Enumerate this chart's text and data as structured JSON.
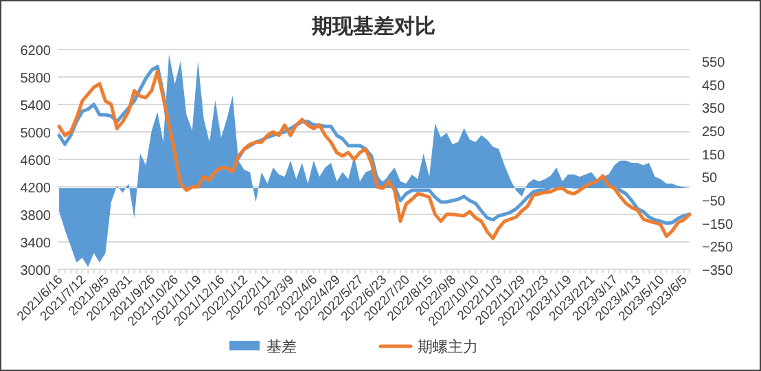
{
  "chart_data": {
    "type": "line",
    "title": "期现基差对比",
    "categories": [
      "2021/6/16",
      null,
      null,
      null,
      "2021/7/12",
      null,
      null,
      null,
      "2021/8/5",
      null,
      null,
      null,
      "2021/8/31",
      null,
      null,
      null,
      "2021/9/26",
      null,
      null,
      null,
      "2021/10/26",
      null,
      null,
      null,
      "2021/11/19",
      null,
      null,
      null,
      "2021/12/16",
      null,
      null,
      null,
      "2022/1/12",
      null,
      null,
      null,
      "2022/2/11",
      null,
      null,
      null,
      "2022/3/9",
      null,
      null,
      null,
      "2022/4/6",
      null,
      null,
      null,
      "2022/4/29",
      null,
      null,
      null,
      "2022/5/27",
      null,
      null,
      null,
      "2022/6/23",
      null,
      null,
      null,
      "2022/7/20",
      null,
      null,
      null,
      "2022/8/15",
      null,
      null,
      null,
      "2022/9/8",
      null,
      null,
      null,
      "2022/10/10",
      null,
      null,
      null,
      "2022/11/3",
      null,
      null,
      null,
      "2022/11/29",
      null,
      null,
      null,
      "2022/12/23",
      null,
      null,
      null,
      "2023/1/19",
      null,
      null,
      null,
      "2023/2/21",
      null,
      null,
      null,
      "2023/3/17",
      null,
      null,
      null,
      "2023/4/13",
      null,
      null,
      null,
      "2023/5/10",
      null,
      null,
      null,
      "2023/6/5",
      null
    ],
    "series": [
      {
        "name": "基差",
        "type": "area",
        "axis": "y2",
        "color": "#5b9bd5",
        "values": [
          -100,
          -180,
          -250,
          -320,
          -300,
          -340,
          -280,
          -320,
          -280,
          -60,
          10,
          -20,
          20,
          -130,
          150,
          100,
          250,
          330,
          200,
          580,
          450,
          550,
          320,
          250,
          550,
          300,
          200,
          380,
          220,
          300,
          400,
          120,
          80,
          70,
          -60,
          70,
          20,
          90,
          60,
          50,
          120,
          40,
          110,
          20,
          120,
          50,
          90,
          110,
          30,
          70,
          40,
          140,
          30,
          70,
          80,
          60,
          20,
          60,
          90,
          30,
          20,
          60,
          40,
          150,
          50,
          280,
          220,
          240,
          190,
          200,
          260,
          210,
          200,
          230,
          210,
          180,
          170,
          100,
          40,
          -10,
          -35,
          20,
          40,
          30,
          40,
          55,
          90,
          30,
          60,
          60,
          50,
          60,
          70,
          40,
          50,
          60,
          100,
          120,
          120,
          110,
          110,
          100,
          110,
          50,
          40,
          20,
          20,
          10,
          5,
          0
        ]
      },
      {
        "color": "#5b9bd5",
        "values": [
          4950,
          4820,
          4950,
          5150,
          5300,
          5330,
          5400,
          5250,
          5250,
          5230,
          5150,
          5250,
          5350,
          5450,
          5620,
          5780,
          5900,
          5950,
          5550,
          5000,
          4600,
          4300,
          4250,
          4250,
          4300,
          4350,
          4400,
          4450,
          4500,
          4500,
          4500,
          4620,
          4750,
          4800,
          4850,
          4880,
          4920,
          4950,
          4980,
          5000,
          5050,
          5100,
          5150,
          5150,
          5100,
          5100,
          5080,
          5080,
          4950,
          4900,
          4800,
          4800,
          4800,
          4750,
          4650,
          4300,
          4250,
          4320,
          4200,
          4000,
          4100,
          4150,
          4150,
          4150,
          4150,
          4050,
          3980,
          3980,
          4000,
          4020,
          4060,
          4000,
          3960,
          3850,
          3750,
          3720,
          3780,
          3800,
          3830,
          3880,
          3960,
          4050,
          4130,
          4150,
          4150,
          4200,
          4240,
          4240,
          4220,
          4200,
          4200,
          4220,
          4240,
          4280,
          4320,
          4250,
          4200,
          4150,
          4100,
          4000,
          3880,
          3840,
          3760,
          3720,
          3700,
          3670,
          3680,
          3740,
          3780,
          3800
        ]
      },
      {
        "name": "期螺主力",
        "color": "#ed7d31",
        "values": [
          5080,
          4950,
          5000,
          5200,
          5450,
          5550,
          5650,
          5700,
          5450,
          5400,
          5050,
          5150,
          5300,
          5600,
          5520,
          5500,
          5600,
          5880,
          5500,
          5100,
          4700,
          4250,
          4150,
          4200,
          4200,
          4350,
          4300,
          4420,
          4480,
          4480,
          4420,
          4650,
          4750,
          4820,
          4850,
          4850,
          4950,
          5000,
          4950,
          5100,
          4950,
          5100,
          5180,
          5100,
          5050,
          5100,
          4950,
          4850,
          4700,
          4650,
          4700,
          4600,
          4700,
          4750,
          4550,
          4200,
          4180,
          4280,
          4150,
          3700,
          3950,
          4020,
          4100,
          4080,
          4050,
          3800,
          3700,
          3800,
          3800,
          3790,
          3780,
          3840,
          3750,
          3700,
          3550,
          3450,
          3600,
          3700,
          3730,
          3760,
          3850,
          3920,
          4080,
          4100,
          4120,
          4130,
          4170,
          4180,
          4120,
          4100,
          4150,
          4210,
          4250,
          4280,
          4360,
          4220,
          4180,
          4060,
          3960,
          3900,
          3860,
          3730,
          3700,
          3680,
          3650,
          3480,
          3560,
          3680,
          3720,
          3800
        ]
      }
    ],
    "ylim": [
      3000,
      6200
    ],
    "yticks": [
      3000,
      3400,
      3800,
      4200,
      4600,
      5000,
      5400,
      5800,
      6200
    ],
    "y2lim": [
      -350,
      600
    ],
    "y2ticks": [
      -350,
      -250,
      -150,
      -50,
      50,
      150,
      250,
      350,
      450,
      550
    ],
    "grid": "y",
    "legend": "bottom"
  }
}
